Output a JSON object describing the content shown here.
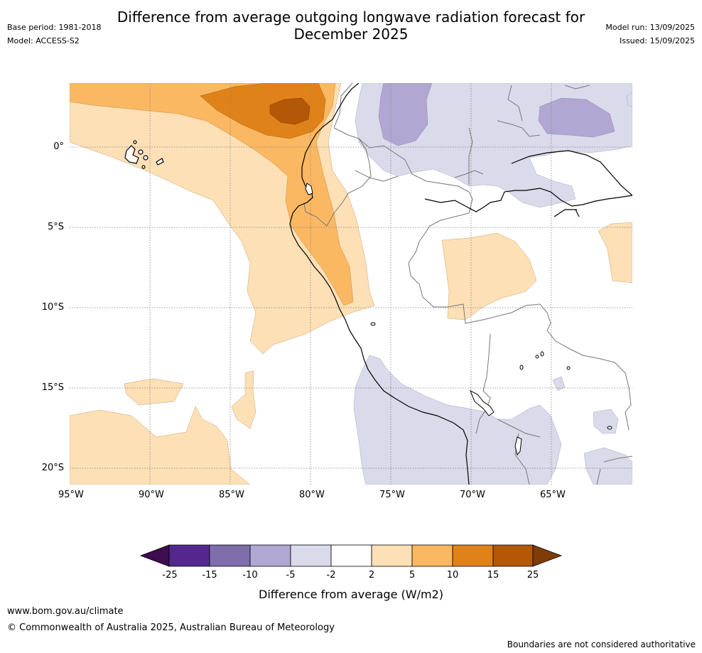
{
  "header": {
    "base_period": "Base period: 1981-2018",
    "model": "Model: ACCESS-S2",
    "title_line1": "Difference from average outgoing longwave radiation forecast for",
    "title_line2": "December 2025",
    "model_run": "Model run: 13/09/2025",
    "issued": "Issued: 15/09/2025"
  },
  "map": {
    "lat_ticks": [
      "0°",
      "5°S",
      "10°S",
      "15°S",
      "20°S"
    ],
    "lon_ticks": [
      "95°W",
      "90°W",
      "85°W",
      "80°W",
      "75°W",
      "70°W",
      "65°W"
    ],
    "gridlines": true,
    "background_color": "#ffffff",
    "coastline_color": "#000000",
    "border_color": "#777777"
  },
  "colorbar": {
    "tick_labels": [
      "-25",
      "-15",
      "-10",
      "-5",
      "-2",
      "2",
      "5",
      "10",
      "15",
      "25"
    ],
    "colors": [
      "#3f0d4f",
      "#54278f",
      "#7f6eab",
      "#b0a8d2",
      "#dadaeb",
      "#ffffff",
      "#fde0b6",
      "#fbb863",
      "#e0821a",
      "#b35806",
      "#7f3b08"
    ],
    "label": "Difference from average (W/m2)"
  },
  "footer": {
    "url": "www.bom.gov.au/climate",
    "copyright": "© Commonwealth of Australia 2025, Australian Bureau of Meteorology",
    "disclaimer": "Boundaries are not considered authoritative"
  }
}
